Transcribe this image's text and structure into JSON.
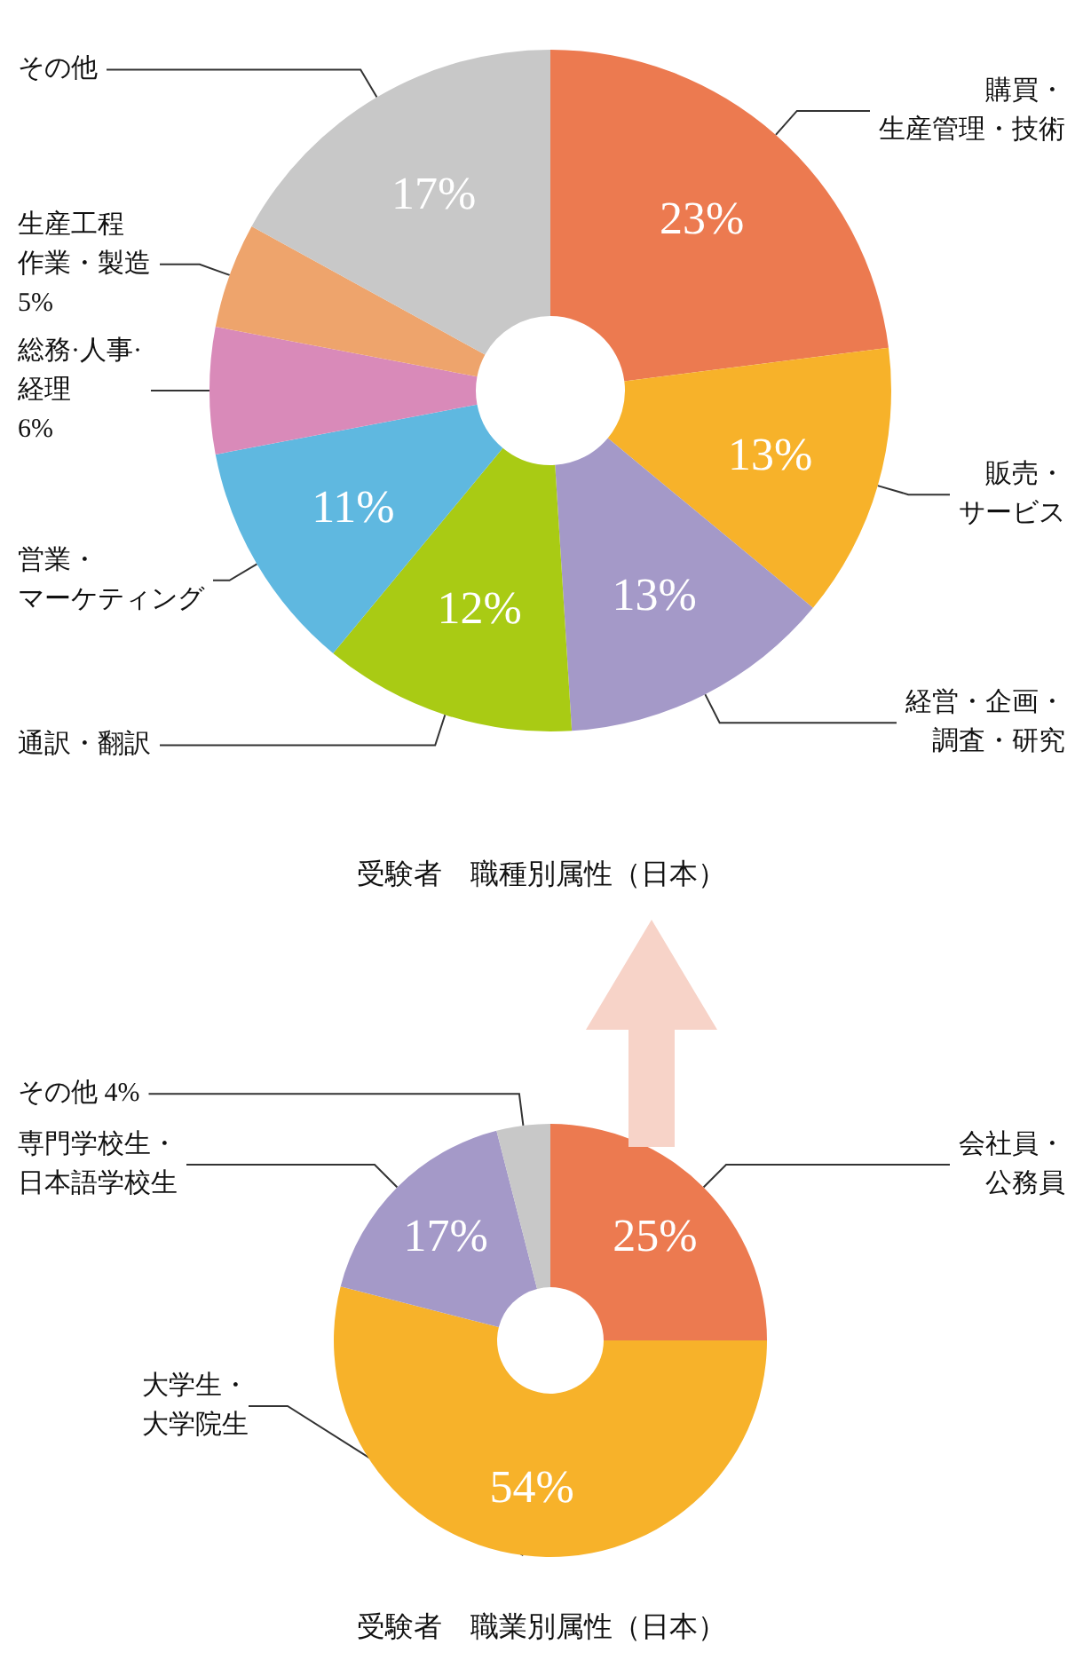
{
  "chart_data": [
    {
      "type": "donut",
      "title": "受験者　職種別属性（日本）",
      "categories": [
        "購買・生産管理・技術",
        "販売・サービス",
        "経営・企画・調査・研究",
        "通訳・翻訳",
        "営業・マーケティング",
        "総務·人事·経理",
        "生産工程作業・製造",
        "その他"
      ],
      "values": [
        23,
        13,
        13,
        12,
        11,
        6,
        5,
        17
      ],
      "value_labels": [
        "23%",
        "13%",
        "13%",
        "12%",
        "11%",
        "6%",
        "5%",
        "17%"
      ],
      "colors": [
        "#ec7a50",
        "#f7b22a",
        "#a499c8",
        "#a9cb14",
        "#5fb8e0",
        "#d98ab9",
        "#eea46c",
        "#c8c8c8"
      ],
      "legend": false
    },
    {
      "type": "donut",
      "title": "受験者　職業別属性（日本）",
      "categories": [
        "会社員・公務員",
        "大学生・大学院生",
        "専門学校生・日本語学校生",
        "その他"
      ],
      "values": [
        25,
        54,
        17,
        4
      ],
      "value_labels": [
        "25%",
        "54%",
        "17%",
        "4%"
      ],
      "colors": [
        "#ec7a50",
        "#f7b22a",
        "#a499c8",
        "#c8c8c8"
      ],
      "legend": false
    }
  ]
}
